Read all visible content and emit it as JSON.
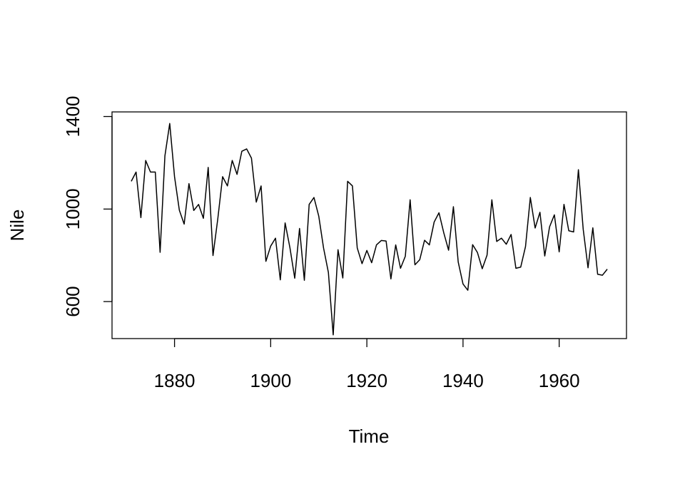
{
  "chart_data": {
    "type": "line",
    "title": "",
    "xlabel": "Time",
    "ylabel": "Nile",
    "xlim": [
      1867,
      1974
    ],
    "ylim": [
      440,
      1420
    ],
    "x_ticks": [
      1880,
      1900,
      1920,
      1940,
      1960
    ],
    "x_tick_labels": [
      "1880",
      "1900",
      "1920",
      "1940",
      "1960"
    ],
    "y_ticks": [
      600,
      1000,
      1400
    ],
    "y_tick_labels": [
      "600",
      "1000",
      "1400"
    ],
    "grid": false,
    "legend": "none",
    "series": [
      {
        "color": "#000000",
        "x_start": 1871,
        "x_step": 1,
        "values": [
          1120,
          1160,
          963,
          1210,
          1160,
          1160,
          813,
          1230,
          1370,
          1140,
          995,
          935,
          1110,
          994,
          1020,
          960,
          1180,
          799,
          958,
          1140,
          1100,
          1210,
          1150,
          1250,
          1260,
          1220,
          1030,
          1100,
          774,
          840,
          874,
          694,
          940,
          833,
          701,
          916,
          692,
          1020,
          1050,
          969,
          831,
          726,
          456,
          824,
          702,
          1120,
          1100,
          832,
          764,
          821,
          768,
          845,
          864,
          862,
          698,
          845,
          744,
          796,
          1040,
          759,
          781,
          865,
          845,
          944,
          984,
          897,
          822,
          1010,
          771,
          676,
          649,
          846,
          812,
          742,
          801,
          1040,
          860,
          874,
          848,
          890,
          744,
          749,
          838,
          1050,
          918,
          986,
          797,
          923,
          975,
          815,
          1020,
          906,
          901,
          1170,
          912,
          746,
          919,
          718,
          714,
          740
        ]
      }
    ]
  }
}
